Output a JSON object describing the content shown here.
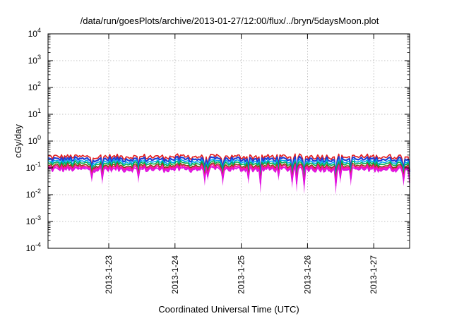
{
  "chart_data": {
    "type": "line",
    "title": "/data/run/goesPlots/archive/2013-01-27/12:00/flux/../bryn/5daysMoon.plot",
    "xlabel": "Coordinated Universal Time (UTC)",
    "ylabel": "cGy/day",
    "yscale": "log",
    "ylim": [
      0.0001,
      10000
    ],
    "y_ticks": [
      {
        "base": "10",
        "exp": "4"
      },
      {
        "base": "10",
        "exp": "3"
      },
      {
        "base": "10",
        "exp": "2"
      },
      {
        "base": "10",
        "exp": "1"
      },
      {
        "base": "10",
        "exp": "0"
      },
      {
        "base": "10",
        "exp": "-1"
      },
      {
        "base": "10",
        "exp": "-2"
      },
      {
        "base": "10",
        "exp": "-3"
      },
      {
        "base": "10",
        "exp": "-4"
      }
    ],
    "x_range": [
      "2013-01-22 02:00",
      "2013-01-27 13:00"
    ],
    "x_ticks": [
      "2013-1-23",
      "2013-1-24",
      "2013-1-25",
      "2013-1-26",
      "2013-1-27"
    ],
    "grid": true,
    "series": [
      {
        "color": "#e31a1c",
        "level": 0.26
      },
      {
        "color": "#1f3fd6",
        "level": 0.21
      },
      {
        "color": "#00a8f0",
        "level": 0.17
      },
      {
        "color": "#00b050",
        "level": 0.145
      },
      {
        "color": "#8b4513",
        "level": 0.12
      },
      {
        "color": "#ff1493",
        "level": 0.105
      },
      {
        "color": "#e010e0",
        "level": 0.088
      }
    ]
  }
}
